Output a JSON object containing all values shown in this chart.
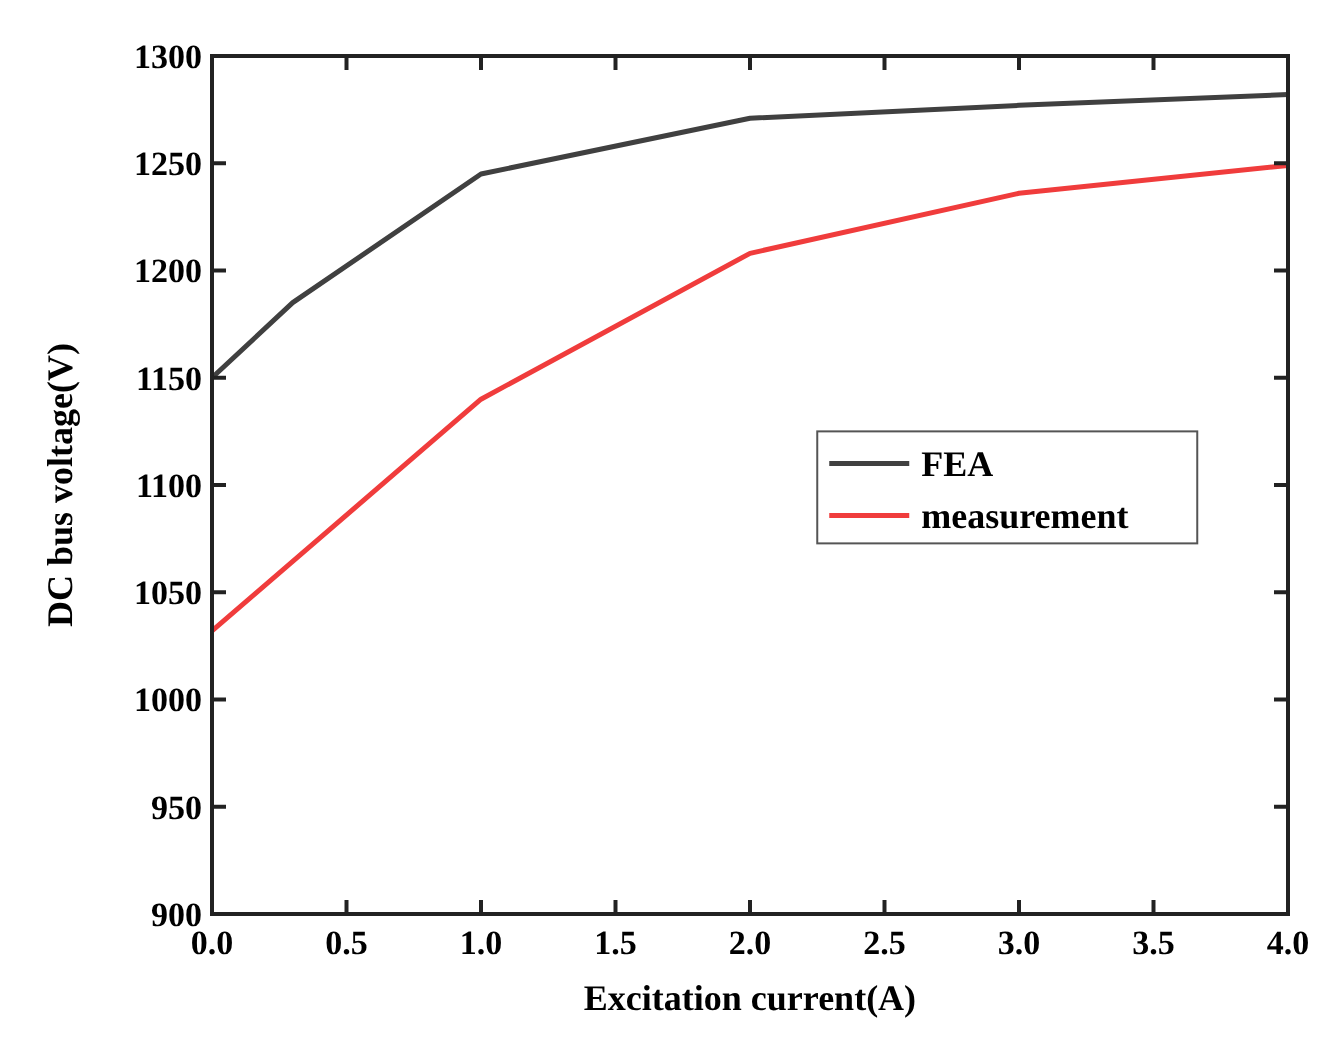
{
  "chart_data": {
    "type": "line",
    "xlabel": "Excitation current(A)",
    "ylabel": "DC bus voltage(V)",
    "x": [
      0,
      0.3,
      1,
      2,
      3,
      4
    ],
    "series": [
      {
        "name": "FEA",
        "color": "#404040",
        "values": [
          1150,
          1185,
          1245,
          1271,
          1277,
          1282
        ]
      },
      {
        "name": "measurement",
        "color": "#f03c3c",
        "x": [
          0,
          1,
          2,
          3,
          4
        ],
        "values": [
          1032,
          1140,
          1208,
          1236,
          1249
        ]
      }
    ],
    "xlim": [
      0,
      4
    ],
    "xticks": [
      {
        "value": 0,
        "label": "0.0"
      },
      0.5,
      {
        "value": 1,
        "label": "1.0"
      },
      1.5,
      {
        "value": 2,
        "label": "2.0"
      },
      2.5,
      {
        "value": 3,
        "label": "3.0"
      },
      3.5,
      {
        "value": 4,
        "label": "4.0"
      }
    ],
    "ylim": [
      900,
      1300
    ],
    "yticks": [
      900,
      950,
      1000,
      1050,
      1100,
      1150,
      1200,
      1250,
      1300
    ],
    "grid": false,
    "legend": "right",
    "marker": "none",
    "line_style": "solid"
  }
}
